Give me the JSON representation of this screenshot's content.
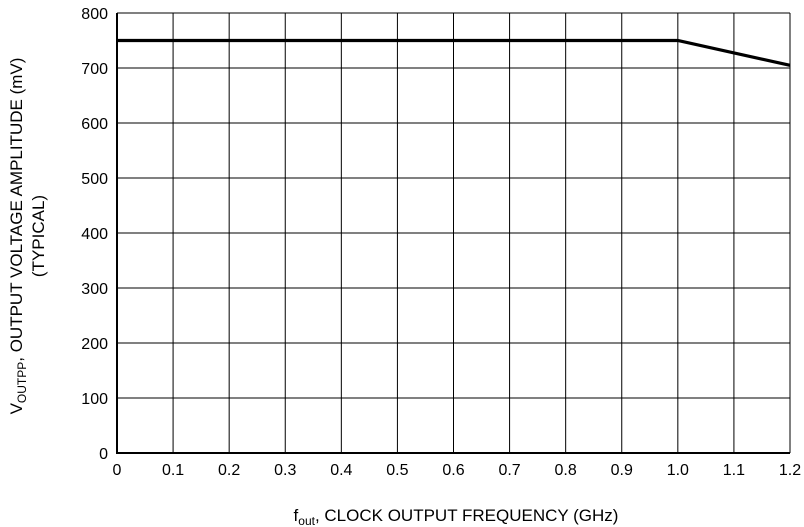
{
  "chart_data": {
    "type": "line",
    "xlabel": {
      "prefix": "f",
      "subscript": "out",
      "rest": ", CLOCK OUTPUT FREQUENCY (GHz)"
    },
    "ylabel": {
      "prefix": "V",
      "subscript": "OUTPP",
      "line1_rest": ", OUTPUT VOLTAGE AMPLITUDE (mV)",
      "line2": "(TYPICAL)"
    },
    "xlim": [
      0,
      1.2
    ],
    "ylim": [
      0,
      800
    ],
    "x_ticks": [
      "0",
      "0.1",
      "0.2",
      "0.3",
      "0.4",
      "0.5",
      "0.6",
      "0.7",
      "0.8",
      "0.9",
      "1.0",
      "1.1",
      "1.2"
    ],
    "y_ticks": [
      "0",
      "100",
      "200",
      "300",
      "400",
      "500",
      "600",
      "700",
      "800"
    ],
    "grid": true,
    "series": [
      {
        "x": [
          0,
          1.0,
          1.2
        ],
        "y": [
          750,
          750,
          705
        ]
      }
    ]
  }
}
